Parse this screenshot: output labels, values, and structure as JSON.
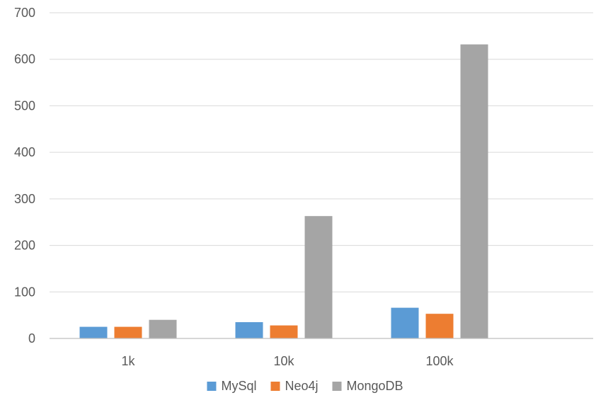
{
  "chart_data": {
    "type": "bar",
    "categories": [
      "1k",
      "10k",
      "100k"
    ],
    "series": [
      {
        "name": "MySql",
        "values": [
          25,
          35,
          66
        ],
        "color": "#5b9bd5"
      },
      {
        "name": "Neo4j",
        "values": [
          25,
          28,
          53
        ],
        "color": "#ed7d31"
      },
      {
        "name": "MongoDB",
        "values": [
          40,
          263,
          632
        ],
        "color": "#a5a5a5"
      }
    ],
    "title": "",
    "xlabel": "",
    "ylabel": "",
    "ylim": [
      0,
      700
    ],
    "yticks": [
      0,
      100,
      200,
      300,
      400,
      500,
      600,
      700
    ],
    "grid": true,
    "legend": "bottom"
  }
}
